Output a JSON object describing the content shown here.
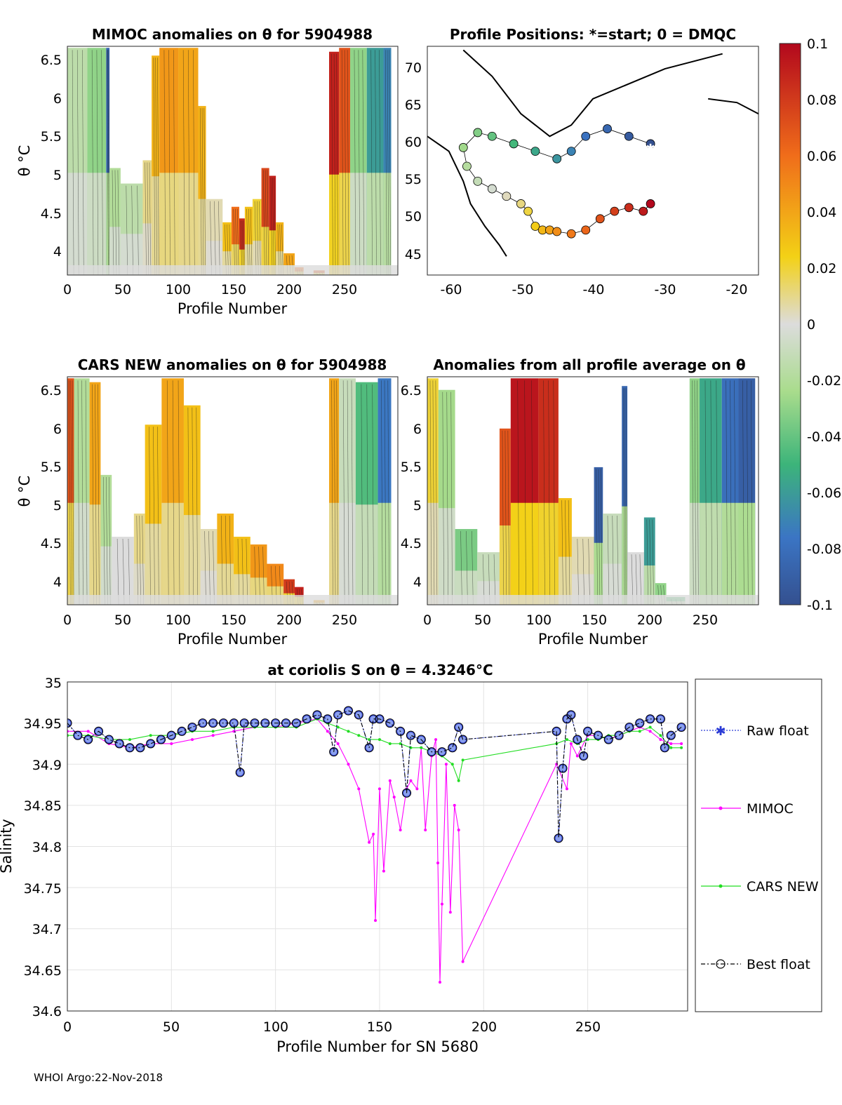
{
  "colorbar": {
    "ticks": [
      "0.1",
      "0.08",
      "0.06",
      "0.04",
      "0.02",
      "0",
      "-0.02",
      "-0.04",
      "-0.06",
      "-0.08",
      "-0.1"
    ],
    "min": -0.1,
    "max": 0.1
  },
  "panels": {
    "mimoc": {
      "title": "MIMOC anomalies on θ  for 5904988",
      "xlabel": "Profile Number",
      "ylabel": "θ °C",
      "xticks": [
        "0",
        "50",
        "100",
        "150",
        "200",
        "250"
      ],
      "yticks": [
        "4",
        "4.5",
        "5",
        "5.5",
        "6",
        "6.5"
      ]
    },
    "positions": {
      "title": "Profile Positions: *=start; 0 = DMQC",
      "xticks": [
        "-60",
        "-50",
        "-40",
        "-30",
        "-20"
      ],
      "yticks": [
        "45",
        "50",
        "55",
        "60",
        "65",
        "70"
      ]
    },
    "cars": {
      "title": "CARS NEW anomalies on θ for 5904988",
      "xlabel": "Profile Number",
      "ylabel": "θ °C",
      "xticks": [
        "0",
        "50",
        "100",
        "150",
        "200",
        "250"
      ],
      "yticks": [
        "4",
        "4.5",
        "5",
        "5.5",
        "6",
        "6.5"
      ]
    },
    "average": {
      "title": "Anomalies from all profile average on θ",
      "xlabel": "Profile Number",
      "xticks": [
        "0",
        "50",
        "100",
        "150",
        "200",
        "250"
      ],
      "yticks": [
        "4",
        "4.5",
        "5",
        "5.5",
        "6",
        "6.5"
      ]
    }
  },
  "chart_data": [
    {
      "type": "heatmap",
      "title": "MIMOC anomalies on θ  for 5904988",
      "xlabel": "Profile Number",
      "ylabel": "θ °C",
      "xlim": [
        0,
        298
      ],
      "ylim": [
        3.72,
        6.67
      ],
      "clim": [
        -0.1,
        0.1
      ],
      "columns": [
        {
          "x0": 0,
          "x1": 18,
          "top": 6.65,
          "v": -0.015
        },
        {
          "x0": 18,
          "x1": 35,
          "top": 6.65,
          "v": -0.03
        },
        {
          "x0": 35,
          "x1": 38,
          "top": 6.65,
          "v": -0.085
        },
        {
          "x0": 38,
          "x1": 48,
          "top": 5.1,
          "v": -0.02
        },
        {
          "x0": 48,
          "x1": 68,
          "top": 4.9,
          "v": -0.015
        },
        {
          "x0": 68,
          "x1": 76,
          "top": 5.2,
          "v": 0.01
        },
        {
          "x0": 76,
          "x1": 83,
          "top": 6.55,
          "v": 0.035
        },
        {
          "x0": 83,
          "x1": 100,
          "top": 6.65,
          "v": 0.045
        },
        {
          "x0": 100,
          "x1": 118,
          "top": 6.65,
          "v": 0.04
        },
        {
          "x0": 118,
          "x1": 125,
          "top": 5.9,
          "v": 0.035
        },
        {
          "x0": 125,
          "x1": 140,
          "top": 4.7,
          "v": 0.005
        },
        {
          "x0": 140,
          "x1": 148,
          "top": 4.4,
          "v": 0.03
        },
        {
          "x0": 148,
          "x1": 155,
          "top": 4.6,
          "v": 0.06
        },
        {
          "x0": 155,
          "x1": 160,
          "top": 4.45,
          "v": 0.085
        },
        {
          "x0": 160,
          "x1": 167,
          "top": 4.6,
          "v": 0.03
        },
        {
          "x0": 167,
          "x1": 175,
          "top": 4.7,
          "v": 0.02
        },
        {
          "x0": 175,
          "x1": 182,
          "top": 5.1,
          "v": 0.075
        },
        {
          "x0": 182,
          "x1": 188,
          "top": 5.0,
          "v": 0.09
        },
        {
          "x0": 188,
          "x1": 195,
          "top": 4.4,
          "v": 0.035
        },
        {
          "x0": 195,
          "x1": 205,
          "top": 4.0,
          "v": 0.04
        },
        {
          "x0": 205,
          "x1": 213,
          "top": 3.82,
          "v": 0.06
        },
        {
          "x0": 222,
          "x1": 232,
          "top": 3.78,
          "v": 0.07
        },
        {
          "x0": 236,
          "x1": 245,
          "top": 6.6,
          "v": 0.09
        },
        {
          "x0": 245,
          "x1": 255,
          "top": 6.65,
          "v": 0.07
        },
        {
          "x0": 255,
          "x1": 270,
          "top": 6.65,
          "v": -0.03
        },
        {
          "x0": 270,
          "x1": 285,
          "top": 6.65,
          "v": -0.06
        },
        {
          "x0": 285,
          "x1": 292,
          "top": 6.65,
          "v": -0.07
        }
      ]
    },
    {
      "type": "scatter",
      "title": "Profile Positions: *=start; 0 = DMQC",
      "xlim": [
        -63,
        -17
      ],
      "ylim": [
        42.5,
        73
      ],
      "track_lon": [
        -32,
        -35,
        -38,
        -41,
        -43,
        -45,
        -48,
        -51,
        -54,
        -56,
        -58,
        -57.5,
        -56,
        -54,
        -52,
        -50,
        -49,
        -48,
        -47,
        -46,
        -45,
        -43,
        -41,
        -39,
        -37,
        -35,
        -33,
        -32
      ],
      "track_lat": [
        60,
        61,
        62,
        61,
        59,
        58,
        59,
        60,
        61,
        61.5,
        59.5,
        57,
        55,
        54,
        53,
        52,
        51,
        49,
        48.5,
        48.5,
        48.3,
        48,
        48.5,
        50,
        51,
        51.5,
        51,
        52
      ],
      "start": [
        -32,
        59.5
      ]
    },
    {
      "type": "heatmap",
      "title": "CARS NEW anomalies on θ for 5904988",
      "xlabel": "Profile Number",
      "ylabel": "θ °C",
      "xlim": [
        0,
        298
      ],
      "ylim": [
        3.72,
        6.67
      ],
      "clim": [
        -0.1,
        0.1
      ],
      "columns": [
        {
          "x0": 0,
          "x1": 6,
          "top": 6.65,
          "v": 0.07
        },
        {
          "x0": 6,
          "x1": 20,
          "top": 6.65,
          "v": -0.02
        },
        {
          "x0": 20,
          "x1": 30,
          "top": 6.6,
          "v": 0.04
        },
        {
          "x0": 30,
          "x1": 40,
          "top": 5.4,
          "v": -0.02
        },
        {
          "x0": 40,
          "x1": 60,
          "top": 4.6,
          "v": 0.0
        },
        {
          "x0": 60,
          "x1": 70,
          "top": 4.9,
          "v": 0.01
        },
        {
          "x0": 70,
          "x1": 85,
          "top": 6.05,
          "v": 0.03
        },
        {
          "x0": 85,
          "x1": 105,
          "top": 6.65,
          "v": 0.04
        },
        {
          "x0": 105,
          "x1": 120,
          "top": 6.3,
          "v": 0.03
        },
        {
          "x0": 120,
          "x1": 135,
          "top": 4.7,
          "v": 0.005
        },
        {
          "x0": 135,
          "x1": 150,
          "top": 4.9,
          "v": 0.035
        },
        {
          "x0": 150,
          "x1": 165,
          "top": 4.6,
          "v": 0.03
        },
        {
          "x0": 165,
          "x1": 180,
          "top": 4.5,
          "v": 0.045
        },
        {
          "x0": 180,
          "x1": 195,
          "top": 4.25,
          "v": 0.05
        },
        {
          "x0": 195,
          "x1": 205,
          "top": 4.05,
          "v": 0.08
        },
        {
          "x0": 205,
          "x1": 213,
          "top": 3.95,
          "v": 0.09
        },
        {
          "x0": 222,
          "x1": 232,
          "top": 3.78,
          "v": 0.04
        },
        {
          "x0": 236,
          "x1": 245,
          "top": 6.65,
          "v": 0.04
        },
        {
          "x0": 245,
          "x1": 260,
          "top": 6.65,
          "v": -0.01
        },
        {
          "x0": 260,
          "x1": 280,
          "top": 6.6,
          "v": -0.045
        },
        {
          "x0": 280,
          "x1": 292,
          "top": 6.65,
          "v": -0.075
        }
      ]
    },
    {
      "type": "heatmap",
      "title": "Anomalies from all profile average on θ",
      "xlabel": "Profile Number",
      "xlim": [
        0,
        298
      ],
      "ylim": [
        3.72,
        6.67
      ],
      "clim": [
        -0.1,
        0.1
      ],
      "columns": [
        {
          "x0": 0,
          "x1": 10,
          "top": 6.65,
          "v": 0.02
        },
        {
          "x0": 10,
          "x1": 25,
          "top": 6.5,
          "v": -0.025
        },
        {
          "x0": 25,
          "x1": 45,
          "top": 4.7,
          "v": -0.035
        },
        {
          "x0": 45,
          "x1": 65,
          "top": 4.4,
          "v": -0.01
        },
        {
          "x0": 65,
          "x1": 75,
          "top": 6.0,
          "v": 0.07
        },
        {
          "x0": 75,
          "x1": 100,
          "top": 6.65,
          "v": 0.095
        },
        {
          "x0": 100,
          "x1": 118,
          "top": 6.65,
          "v": 0.085
        },
        {
          "x0": 118,
          "x1": 130,
          "top": 5.1,
          "v": 0.03
        },
        {
          "x0": 130,
          "x1": 150,
          "top": 4.6,
          "v": 0.005
        },
        {
          "x0": 150,
          "x1": 158,
          "top": 5.5,
          "v": -0.09
        },
        {
          "x0": 158,
          "x1": 175,
          "top": 4.9,
          "v": -0.01
        },
        {
          "x0": 175,
          "x1": 180,
          "top": 6.55,
          "v": -0.085
        },
        {
          "x0": 180,
          "x1": 195,
          "top": 4.4,
          "v": 0.0
        },
        {
          "x0": 195,
          "x1": 205,
          "top": 4.85,
          "v": -0.06
        },
        {
          "x0": 205,
          "x1": 215,
          "top": 4.0,
          "v": -0.03
        },
        {
          "x0": 215,
          "x1": 232,
          "top": 3.82,
          "v": -0.04
        },
        {
          "x0": 236,
          "x1": 245,
          "top": 6.65,
          "v": -0.03
        },
        {
          "x0": 245,
          "x1": 265,
          "top": 6.65,
          "v": -0.055
        },
        {
          "x0": 265,
          "x1": 280,
          "top": 6.65,
          "v": -0.08
        },
        {
          "x0": 280,
          "x1": 295,
          "top": 6.65,
          "v": -0.09
        }
      ]
    },
    {
      "type": "line",
      "title": "at coriolis S on θ = 4.3246°C",
      "xlabel": "Profile Number for SN 5680",
      "ylabel": "Salinity",
      "xlim": [
        0,
        298
      ],
      "ylim": [
        34.6,
        35
      ],
      "xticks": [
        "0",
        "50",
        "100",
        "150",
        "200",
        "250"
      ],
      "yticks": [
        "34.6",
        "34.65",
        "34.7",
        "34.75",
        "34.8",
        "34.85",
        "34.9",
        "34.95",
        "35"
      ],
      "series": [
        {
          "name": "Raw float",
          "color": "#2b3bd6",
          "x": [
            0,
            5,
            10,
            15,
            20,
            25,
            30,
            35,
            40,
            45,
            50,
            55,
            60,
            65,
            70,
            75,
            80,
            83,
            85,
            90,
            95,
            100,
            105,
            110,
            115,
            120,
            125,
            128,
            130,
            135,
            140,
            145,
            147,
            150,
            155,
            160,
            163,
            165,
            170,
            175,
            180,
            185,
            188,
            190,
            235,
            236,
            238,
            240,
            242,
            245,
            248,
            250,
            255,
            260,
            265,
            270,
            275,
            280,
            285,
            287,
            290,
            295
          ],
          "y": [
            34.95,
            34.935,
            34.93,
            34.94,
            34.93,
            34.925,
            34.92,
            34.92,
            34.925,
            34.93,
            34.935,
            34.94,
            34.945,
            34.95,
            34.95,
            34.95,
            34.95,
            34.89,
            34.95,
            34.95,
            34.95,
            34.95,
            34.95,
            34.95,
            34.955,
            34.96,
            34.955,
            34.915,
            34.96,
            34.965,
            34.96,
            34.92,
            34.955,
            34.955,
            34.95,
            34.94,
            34.865,
            34.935,
            34.93,
            34.915,
            34.915,
            34.92,
            34.945,
            34.93,
            34.94,
            34.81,
            34.895,
            34.955,
            34.96,
            34.93,
            34.91,
            34.94,
            34.935,
            34.93,
            34.935,
            34.945,
            34.95,
            34.955,
            34.955,
            34.92,
            34.935,
            34.945
          ]
        },
        {
          "name": "MIMOC",
          "color": "#ff00ff",
          "x": [
            0,
            10,
            20,
            30,
            40,
            50,
            60,
            70,
            80,
            90,
            100,
            110,
            120,
            125,
            130,
            135,
            140,
            145,
            147,
            148,
            150,
            152,
            155,
            157,
            160,
            163,
            165,
            168,
            170,
            172,
            175,
            177,
            178,
            179,
            180,
            182,
            184,
            186,
            188,
            190,
            235,
            240,
            242,
            245,
            250,
            255,
            260,
            265,
            270,
            275,
            280,
            285,
            290,
            295
          ],
          "y": [
            34.94,
            34.94,
            34.925,
            34.92,
            34.925,
            34.925,
            34.93,
            34.935,
            34.94,
            34.945,
            34.945,
            34.95,
            34.955,
            34.94,
            34.925,
            34.9,
            34.87,
            34.805,
            34.815,
            34.71,
            34.87,
            34.77,
            34.88,
            34.86,
            34.82,
            34.87,
            34.88,
            34.87,
            34.92,
            34.82,
            34.91,
            34.93,
            34.78,
            34.635,
            34.73,
            34.9,
            34.72,
            34.85,
            34.82,
            34.66,
            34.9,
            34.87,
            34.925,
            34.91,
            34.935,
            34.935,
            34.93,
            34.935,
            34.94,
            34.945,
            34.94,
            34.93,
            34.925,
            34.925
          ]
        },
        {
          "name": "CARS NEW",
          "color": "#22dd22",
          "x": [
            0,
            10,
            20,
            30,
            40,
            50,
            60,
            70,
            80,
            90,
            100,
            110,
            120,
            125,
            130,
            135,
            140,
            145,
            150,
            155,
            160,
            165,
            170,
            175,
            180,
            185,
            188,
            190,
            235,
            240,
            245,
            250,
            255,
            260,
            265,
            270,
            275,
            280,
            285,
            290,
            295
          ],
          "y": [
            34.935,
            34.935,
            34.93,
            34.93,
            34.935,
            34.935,
            34.94,
            34.94,
            34.945,
            34.945,
            34.945,
            34.945,
            34.955,
            34.95,
            34.945,
            34.94,
            34.935,
            34.93,
            34.93,
            34.925,
            34.925,
            34.92,
            34.92,
            34.915,
            34.91,
            34.9,
            34.88,
            34.905,
            34.925,
            34.93,
            34.925,
            34.93,
            34.93,
            34.935,
            34.935,
            34.94,
            34.94,
            34.945,
            34.935,
            34.92,
            34.92
          ]
        },
        {
          "name": "Best float",
          "color": "#000000",
          "x": [
            0,
            5,
            10,
            15,
            20,
            25,
            30,
            35,
            40,
            45,
            50,
            55,
            60,
            65,
            70,
            75,
            80,
            83,
            85,
            90,
            95,
            100,
            105,
            110,
            115,
            120,
            125,
            128,
            130,
            135,
            140,
            145,
            147,
            150,
            155,
            160,
            163,
            165,
            170,
            175,
            180,
            185,
            188,
            190,
            235,
            236,
            238,
            240,
            242,
            245,
            248,
            250,
            255,
            260,
            265,
            270,
            275,
            280,
            285,
            287,
            290,
            295
          ],
          "y": [
            34.95,
            34.935,
            34.93,
            34.94,
            34.93,
            34.925,
            34.92,
            34.92,
            34.925,
            34.93,
            34.935,
            34.94,
            34.945,
            34.95,
            34.95,
            34.95,
            34.95,
            34.89,
            34.95,
            34.95,
            34.95,
            34.95,
            34.95,
            34.95,
            34.955,
            34.96,
            34.955,
            34.915,
            34.96,
            34.965,
            34.96,
            34.92,
            34.955,
            34.955,
            34.95,
            34.94,
            34.865,
            34.935,
            34.93,
            34.915,
            34.915,
            34.92,
            34.945,
            34.93,
            34.94,
            34.81,
            34.895,
            34.955,
            34.96,
            34.93,
            34.91,
            34.94,
            34.935,
            34.93,
            34.935,
            34.945,
            34.95,
            34.955,
            34.955,
            34.92,
            34.935,
            34.945
          ]
        }
      ]
    }
  ],
  "footer": "WHOI Argo:22-Nov-2018"
}
